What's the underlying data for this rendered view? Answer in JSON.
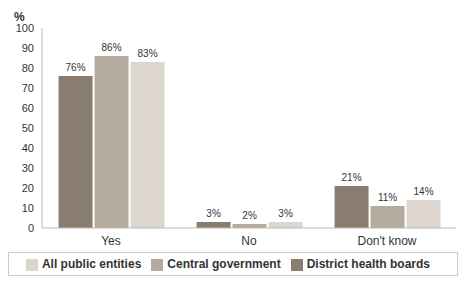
{
  "chart_data": {
    "type": "bar",
    "y_label": "%",
    "categories": [
      "Yes",
      "No",
      "Don't know"
    ],
    "series": [
      {
        "name": "District health boards",
        "color": "#887d6e",
        "values": [
          76,
          3,
          21
        ],
        "value_labels": [
          "76%",
          "3%",
          "21%"
        ]
      },
      {
        "name": "Central government",
        "color": "#b4ab9e",
        "values": [
          86,
          2,
          11
        ],
        "value_labels": [
          "86%",
          "2%",
          "11%"
        ]
      },
      {
        "name": "All public entities",
        "color": "#dcd6ce",
        "values": [
          83,
          3,
          14
        ],
        "value_labels": [
          "83%",
          "3%",
          "14%"
        ]
      }
    ],
    "ylim": [
      0,
      100
    ],
    "yticks": [
      0,
      10,
      20,
      30,
      40,
      50,
      60,
      70,
      80,
      90,
      100
    ],
    "data_labels": true,
    "legend": "bottom",
    "grid": false
  }
}
